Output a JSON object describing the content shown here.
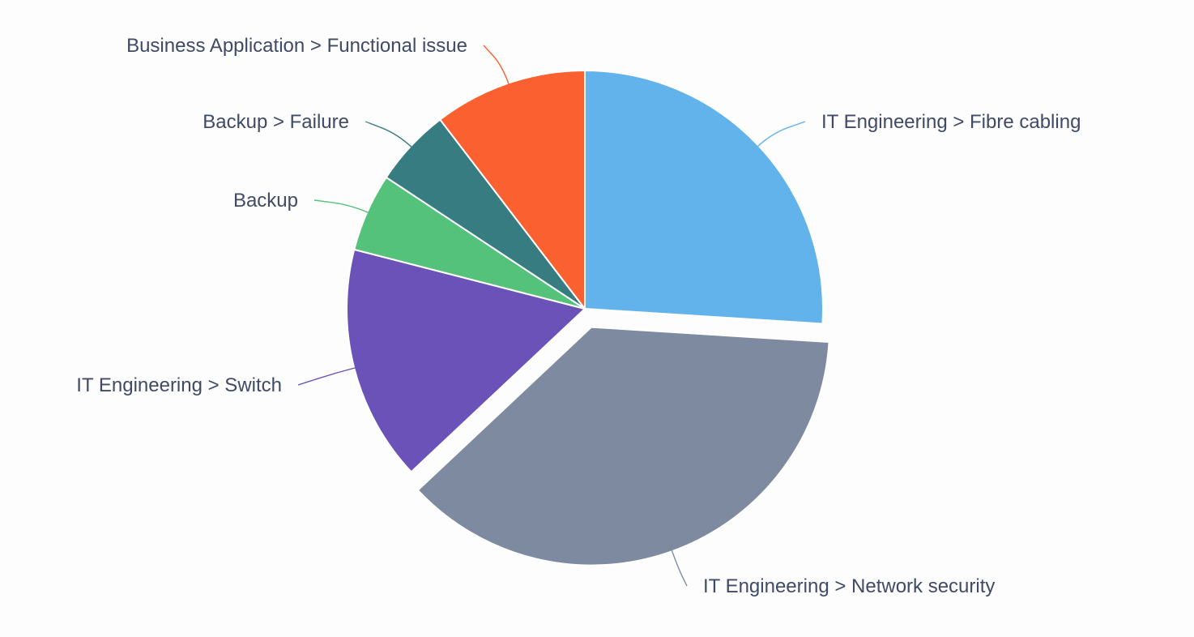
{
  "chart_data": {
    "type": "pie",
    "slices": [
      {
        "label": "IT Engineering > Fibre cabling",
        "value": 26,
        "color": "#62b3eb",
        "offset": false
      },
      {
        "label": "IT Engineering > Network security",
        "value": 37,
        "color": "#7d8aa0",
        "offset": true
      },
      {
        "label": "IT Engineering > Switch",
        "value": 16,
        "color": "#6b52b8",
        "offset": false
      },
      {
        "label": "Backup",
        "value": 5.3,
        "color": "#55c27b",
        "offset": false
      },
      {
        "label": "Backup > Failure",
        "value": 5.3,
        "color": "#377c81",
        "offset": false
      },
      {
        "label": "Business Application > Functional issue",
        "value": 10.4,
        "color": "#fb6130",
        "offset": false
      }
    ],
    "start_angle_deg": 0,
    "direction": "clockwise",
    "legend": "none",
    "title": ""
  }
}
